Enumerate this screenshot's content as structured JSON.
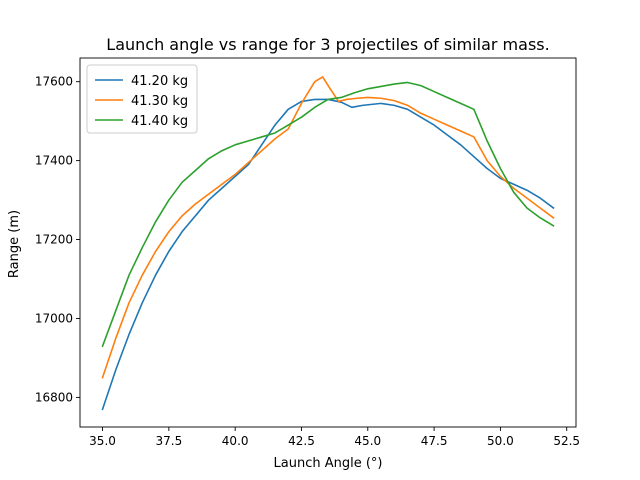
{
  "chart_data": {
    "type": "line",
    "title": "Launch angle vs range for 3 projectiles of similar mass.",
    "xlabel": "Launch Angle (°)",
    "ylabel": "Range (m)",
    "xlim": [
      34.15,
      52.85
    ],
    "ylim": [
      16725,
      17660
    ],
    "x_ticks": [
      35.0,
      37.5,
      40.0,
      42.5,
      45.0,
      47.5,
      50.0,
      52.5
    ],
    "x_tick_labels": [
      "35.0",
      "37.5",
      "40.0",
      "42.5",
      "45.0",
      "47.5",
      "50.0",
      "52.5"
    ],
    "y_ticks": [
      16800,
      17000,
      17200,
      17400,
      17600
    ],
    "y_tick_labels": [
      "16800",
      "17000",
      "17200",
      "17400",
      "17600"
    ],
    "grid": false,
    "legend_position": "top-left",
    "series": [
      {
        "name": "41.20 kg",
        "color": "#1f77b4",
        "x": [
          35.0,
          35.5,
          36.0,
          36.5,
          37.0,
          37.5,
          38.0,
          38.5,
          39.0,
          39.5,
          40.0,
          40.5,
          41.0,
          41.5,
          42.0,
          42.5,
          43.0,
          43.5,
          44.0,
          44.4,
          44.8,
          45.5,
          46.0,
          46.5,
          47.0,
          47.5,
          48.0,
          48.5,
          49.0,
          49.5,
          50.0,
          50.5,
          51.0,
          51.5,
          52.0
        ],
        "y": [
          16770,
          16870,
          16960,
          17040,
          17110,
          17170,
          17220,
          17260,
          17300,
          17330,
          17360,
          17390,
          17440,
          17490,
          17530,
          17550,
          17555,
          17555,
          17548,
          17535,
          17540,
          17545,
          17540,
          17530,
          17510,
          17490,
          17465,
          17440,
          17410,
          17380,
          17355,
          17340,
          17325,
          17305,
          17280
        ]
      },
      {
        "name": "41.30 kg",
        "color": "#ff7f0e",
        "x": [
          35.0,
          35.5,
          36.0,
          36.5,
          37.0,
          37.5,
          38.0,
          38.5,
          39.0,
          39.5,
          40.0,
          40.5,
          41.0,
          41.5,
          42.0,
          42.5,
          43.0,
          43.3,
          43.6,
          43.9,
          44.2,
          44.6,
          45.0,
          45.5,
          46.0,
          46.5,
          47.0,
          47.5,
          48.0,
          48.5,
          49.0,
          49.5,
          50.0,
          50.5,
          51.0,
          51.5,
          52.0
        ],
        "y": [
          16850,
          16950,
          17040,
          17110,
          17170,
          17220,
          17260,
          17290,
          17315,
          17340,
          17365,
          17395,
          17425,
          17455,
          17480,
          17545,
          17600,
          17612,
          17580,
          17550,
          17555,
          17558,
          17560,
          17558,
          17552,
          17540,
          17520,
          17505,
          17490,
          17475,
          17460,
          17400,
          17360,
          17330,
          17305,
          17280,
          17255
        ]
      },
      {
        "name": "41.40 kg",
        "color": "#2ca02c",
        "x": [
          35.0,
          35.5,
          36.0,
          36.5,
          37.0,
          37.5,
          38.0,
          38.5,
          39.0,
          39.5,
          40.0,
          40.5,
          41.0,
          41.5,
          42.0,
          42.5,
          43.0,
          43.5,
          44.0,
          44.5,
          45.0,
          45.5,
          46.0,
          46.5,
          47.0,
          47.5,
          48.0,
          48.5,
          49.0,
          49.5,
          50.0,
          50.5,
          51.0,
          51.5,
          52.0
        ],
        "y": [
          16930,
          17020,
          17110,
          17180,
          17245,
          17300,
          17345,
          17375,
          17405,
          17425,
          17440,
          17450,
          17460,
          17470,
          17490,
          17510,
          17535,
          17555,
          17560,
          17572,
          17582,
          17588,
          17594,
          17598,
          17590,
          17575,
          17560,
          17545,
          17530,
          17450,
          17380,
          17320,
          17280,
          17255,
          17235
        ]
      }
    ]
  }
}
